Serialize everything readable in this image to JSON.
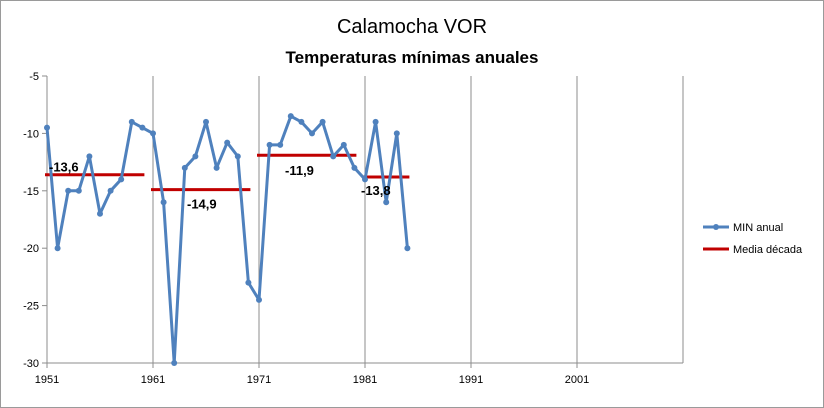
{
  "chart_data": {
    "type": "line",
    "title": "Calamocha VOR",
    "subtitle": "Temperaturas mínimas  anuales",
    "xlabel": "",
    "ylabel": "",
    "xlim": [
      1951,
      2011
    ],
    "ylim": [
      -30,
      -5
    ],
    "x_ticks": [
      "1951",
      "1961",
      "1971",
      "1981",
      "1991",
      "2001"
    ],
    "y_ticks": [
      "-5",
      "-10",
      "-15",
      "-20",
      "-25",
      "-30"
    ],
    "grid": "vertical",
    "legend_position": "right",
    "series": [
      {
        "name": "MIN anual",
        "color": "#4F81BD",
        "points": [
          {
            "x": 1951,
            "y": -9.5
          },
          {
            "x": 1952,
            "y": -20
          },
          {
            "x": 1953,
            "y": -15
          },
          {
            "x": 1954,
            "y": -15
          },
          {
            "x": 1955,
            "y": -12
          },
          {
            "x": 1956,
            "y": -17
          },
          {
            "x": 1957,
            "y": -15
          },
          {
            "x": 1958,
            "y": -14
          },
          {
            "x": 1959,
            "y": -9
          },
          {
            "x": 1960,
            "y": -9.5
          },
          {
            "x": 1961,
            "y": -10
          },
          {
            "x": 1962,
            "y": -16
          },
          {
            "x": 1963,
            "y": -30
          },
          {
            "x": 1964,
            "y": -13
          },
          {
            "x": 1965,
            "y": -12
          },
          {
            "x": 1966,
            "y": -9
          },
          {
            "x": 1967,
            "y": -13
          },
          {
            "x": 1968,
            "y": -10.8
          },
          {
            "x": 1969,
            "y": -12
          },
          {
            "x": 1970,
            "y": -23
          },
          {
            "x": 1971,
            "y": -24.5
          },
          {
            "x": 1972,
            "y": -11
          },
          {
            "x": 1973,
            "y": -11
          },
          {
            "x": 1974,
            "y": -8.5
          },
          {
            "x": 1975,
            "y": -9
          },
          {
            "x": 1976,
            "y": -10
          },
          {
            "x": 1977,
            "y": -9
          },
          {
            "x": 1978,
            "y": -12
          },
          {
            "x": 1979,
            "y": -11
          },
          {
            "x": 1980,
            "y": -13
          },
          {
            "x": 1981,
            "y": -14
          },
          {
            "x": 1982,
            "y": -9
          },
          {
            "x": 1983,
            "y": -16
          },
          {
            "x": 1984,
            "y": -10
          },
          {
            "x": 1985,
            "y": -20
          }
        ]
      },
      {
        "name": "Media década",
        "color": "#C00000",
        "segments": [
          {
            "x0": 1951,
            "x1": 1960,
            "y": -13.6,
            "label": "-13,6"
          },
          {
            "x0": 1961,
            "x1": 1970,
            "y": -14.9,
            "label": "-14,9"
          },
          {
            "x0": 1971,
            "x1": 1980,
            "y": -11.9,
            "label": "-11,9"
          },
          {
            "x0": 1981,
            "x1": 1985,
            "y": -13.8,
            "label": "-13,8"
          }
        ]
      }
    ]
  }
}
